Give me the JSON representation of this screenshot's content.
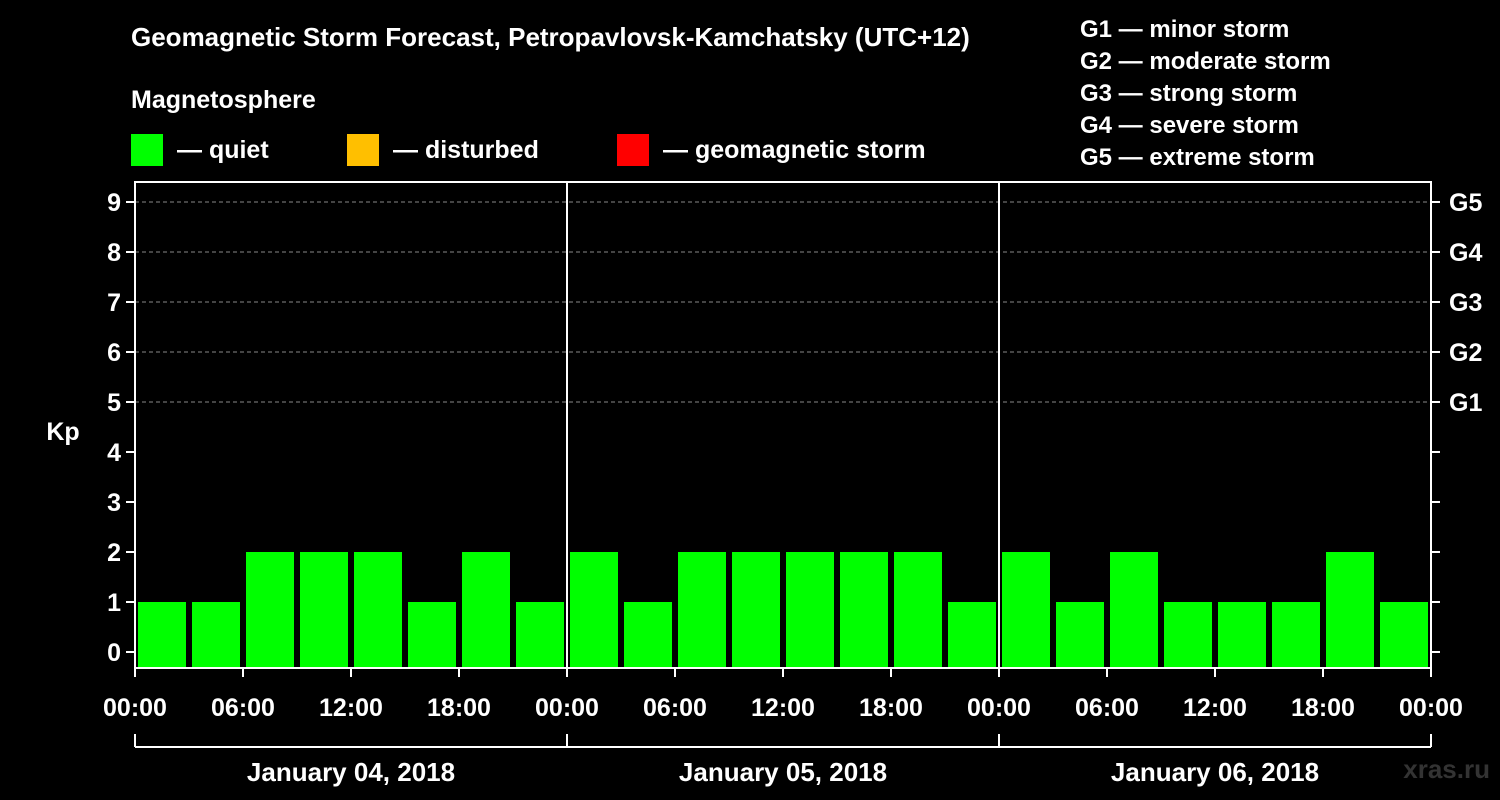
{
  "title": "Geomagnetic Storm Forecast, Petropavlovsk-Kamchatsky (UTC+12)",
  "magnetosphere": {
    "heading": "Magnetosphere",
    "items": [
      {
        "label": "— quiet",
        "color": "#00ff00"
      },
      {
        "label": "— disturbed",
        "color": "#ffbf00"
      },
      {
        "label": "— geomagnetic storm",
        "color": "#ff0000"
      }
    ]
  },
  "storm_scale": [
    "G1 — minor storm",
    "G2 — moderate storm",
    "G3 — strong storm",
    "G4 — severe storm",
    "G5 — extreme storm"
  ],
  "watermark": "xras.ru",
  "chart_data": {
    "type": "bar",
    "ylabel": "Kp",
    "ylim": [
      0,
      9
    ],
    "yticks": [
      "0",
      "1",
      "2",
      "3",
      "4",
      "5",
      "6",
      "7",
      "8",
      "9"
    ],
    "right_ticks": [
      {
        "value": 5,
        "label": "G1"
      },
      {
        "value": 6,
        "label": "G2"
      },
      {
        "value": 7,
        "label": "G3"
      },
      {
        "value": 8,
        "label": "G4"
      },
      {
        "value": 9,
        "label": "G5"
      }
    ],
    "grid_levels": [
      5,
      6,
      7,
      8,
      9
    ],
    "xtick_labels": [
      "00:00",
      "06:00",
      "12:00",
      "18:00",
      "00:00",
      "06:00",
      "12:00",
      "18:00",
      "00:00",
      "06:00",
      "12:00",
      "18:00",
      "00:00"
    ],
    "days": [
      "January 04, 2018",
      "January 05, 2018",
      "January 06, 2018"
    ],
    "interval_hours": 3,
    "values": [
      1,
      1,
      2,
      2,
      2,
      1,
      2,
      1,
      2,
      1,
      2,
      2,
      2,
      2,
      2,
      1,
      2,
      1,
      2,
      1,
      1,
      1,
      2,
      1
    ],
    "bar_color": "#00ff00"
  }
}
